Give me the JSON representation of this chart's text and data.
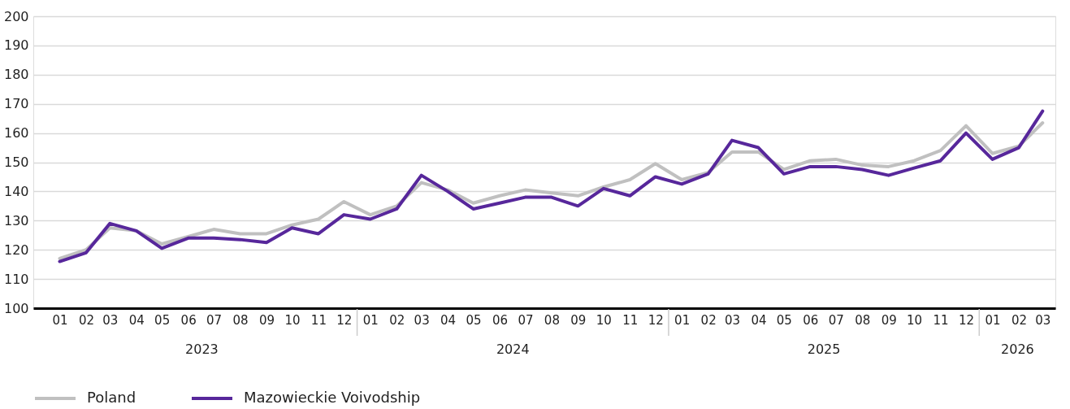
{
  "chart_data": {
    "type": "line",
    "x": [
      "2023-01",
      "2023-02",
      "2023-03",
      "2023-04",
      "2023-05",
      "2023-06",
      "2023-07",
      "2023-08",
      "2023-09",
      "2023-10",
      "2023-11",
      "2023-12",
      "2024-01",
      "2024-02",
      "2024-03",
      "2024-04",
      "2024-05",
      "2024-06",
      "2024-07",
      "2024-08",
      "2024-09",
      "2024-10",
      "2024-11",
      "2024-12",
      "2025-01",
      "2025-02",
      "2025-03",
      "2025-04",
      "2025-05",
      "2025-06",
      "2025-07",
      "2025-08",
      "2025-09",
      "2025-10",
      "2025-11",
      "2025-12",
      "2026-01",
      "2026-02",
      "2026-03"
    ],
    "series": [
      {
        "name": "Poland",
        "color": "#c0c0c0",
        "values": [
          117,
          120,
          127.5,
          126.5,
          122,
          124.5,
          127,
          125.5,
          125.5,
          128.5,
          130.5,
          136.5,
          132,
          135,
          143,
          140.5,
          136,
          138.5,
          140.5,
          139.5,
          138.5,
          141.5,
          144,
          149.5,
          144,
          146.5,
          153.5,
          153.5,
          147.5,
          150.5,
          151,
          149,
          148.5,
          150.5,
          154,
          162.5,
          153,
          155.5,
          163.5
        ]
      },
      {
        "name": "Mazowieckie Voivodship",
        "color": "#57279b",
        "values": [
          116,
          119,
          129,
          126.5,
          120.5,
          124,
          124,
          123.5,
          122.5,
          127.5,
          125.5,
          132,
          130.5,
          134,
          145.5,
          140,
          134,
          136,
          138,
          138,
          135,
          141,
          138.5,
          145,
          142.5,
          146,
          157.5,
          155,
          146,
          148.5,
          148.5,
          147.5,
          145.5,
          148,
          150.5,
          160,
          151,
          155,
          167.5
        ]
      }
    ],
    "xlim": [
      "2022-12-01",
      "2026-03-16"
    ],
    "xticks": [
      {
        "value": "2023-01",
        "label": "01"
      },
      {
        "value": "2023-02",
        "label": "02"
      },
      {
        "value": "2023-03",
        "label": "03"
      },
      {
        "value": "2023-04",
        "label": "04"
      },
      {
        "value": "2023-05",
        "label": "05"
      },
      {
        "value": "2023-06",
        "label": "06"
      },
      {
        "value": "2023-07",
        "label": "07"
      },
      {
        "value": "2023-08",
        "label": "08"
      },
      {
        "value": "2023-09",
        "label": "09"
      },
      {
        "value": "2023-10",
        "label": "10"
      },
      {
        "value": "2023-11",
        "label": "11"
      },
      {
        "value": "2023-12",
        "label": "12"
      },
      {
        "value": "2024-01",
        "label": "01"
      },
      {
        "value": "2024-02",
        "label": "02"
      },
      {
        "value": "2024-03",
        "label": "03"
      },
      {
        "value": "2024-04",
        "label": "04"
      },
      {
        "value": "2024-05",
        "label": "05"
      },
      {
        "value": "2024-06",
        "label": "06"
      },
      {
        "value": "2024-07",
        "label": "07"
      },
      {
        "value": "2024-08",
        "label": "08"
      },
      {
        "value": "2024-09",
        "label": "09"
      },
      {
        "value": "2024-10",
        "label": "10"
      },
      {
        "value": "2024-11",
        "label": "11"
      },
      {
        "value": "2024-12",
        "label": "12"
      },
      {
        "value": "2025-01",
        "label": "01"
      },
      {
        "value": "2025-02",
        "label": "02"
      },
      {
        "value": "2025-03",
        "label": "03"
      },
      {
        "value": "2025-04",
        "label": "04"
      },
      {
        "value": "2025-05",
        "label": "05"
      },
      {
        "value": "2025-06",
        "label": "06"
      },
      {
        "value": "2025-07",
        "label": "07"
      },
      {
        "value": "2025-08",
        "label": "08"
      },
      {
        "value": "2025-09",
        "label": "09"
      },
      {
        "value": "2025-10",
        "label": "10"
      },
      {
        "value": "2025-11",
        "label": "11"
      },
      {
        "value": "2025-12",
        "label": "12"
      },
      {
        "value": "2026-01",
        "label": "01"
      },
      {
        "value": "2026-02",
        "label": "02"
      },
      {
        "value": "2026-03",
        "label": "03"
      }
    ],
    "ylim": [
      100,
      200
    ],
    "yticks": [
      100,
      110,
      120,
      130,
      140,
      150,
      160,
      170,
      180,
      190,
      200
    ],
    "annotations": [
      "2023",
      "2024",
      "2025",
      "2026"
    ],
    "grid": "y",
    "legend": "bottom",
    "line_style": "solid"
  }
}
